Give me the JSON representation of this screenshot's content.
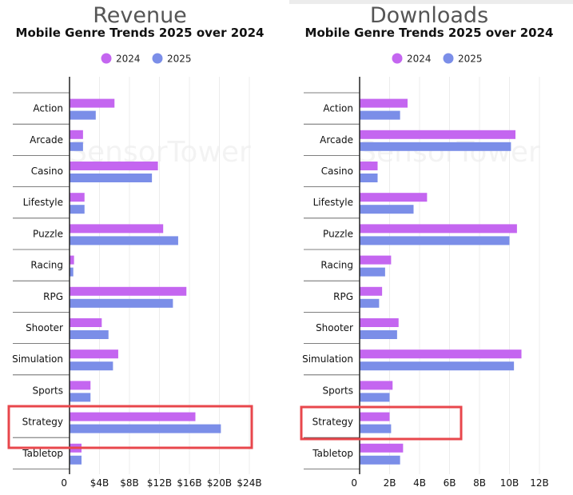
{
  "colors": {
    "y2024": "#c466f0",
    "y2025": "#7b8ee8",
    "highlight": "#e8474c",
    "grid": "#ececec",
    "axis": "#222222"
  },
  "watermark": "SensorTower",
  "chart_data": [
    {
      "type": "bar",
      "orientation": "horizontal",
      "title": "Revenue",
      "subtitle": "Mobile Genre Trends 2025 over 2024",
      "categories": [
        "Action",
        "Arcade",
        "Casino",
        "Lifestyle",
        "Puzzle",
        "Racing",
        "RPG",
        "Shooter",
        "Simulation",
        "Sports",
        "Strategy",
        "Tabletop"
      ],
      "series": [
        {
          "name": "2024",
          "values": [
            6.0,
            1.8,
            11.8,
            2.0,
            12.5,
            0.6,
            15.6,
            4.3,
            6.5,
            2.8,
            16.8,
            1.6
          ]
        },
        {
          "name": "2025",
          "values": [
            3.5,
            1.8,
            11.0,
            2.0,
            14.5,
            0.5,
            13.8,
            5.2,
            5.8,
            2.8,
            20.2,
            1.6
          ]
        }
      ],
      "xticks": [
        "0",
        "$4B",
        "$8B",
        "$12B",
        "$16B",
        "$20B",
        "$24B"
      ],
      "xlim": [
        0,
        24
      ],
      "grid": true,
      "legend": "top-center",
      "highlight_category": "Strategy"
    },
    {
      "type": "bar",
      "orientation": "horizontal",
      "title": "Downloads",
      "subtitle": "Mobile Genre Trends 2025 over 2024",
      "categories": [
        "Action",
        "Arcade",
        "Casino",
        "Lifestyle",
        "Puzzle",
        "Racing",
        "RPG",
        "Shooter",
        "Simulation",
        "Sports",
        "Strategy",
        "Tabletop"
      ],
      "series": [
        {
          "name": "2024",
          "values": [
            3.2,
            10.4,
            1.2,
            4.5,
            10.5,
            2.1,
            1.5,
            2.6,
            10.8,
            2.2,
            2.0,
            2.9
          ]
        },
        {
          "name": "2025",
          "values": [
            2.7,
            10.1,
            1.2,
            3.6,
            10.0,
            1.7,
            1.3,
            2.5,
            10.3,
            2.0,
            2.1,
            2.7
          ]
        }
      ],
      "xticks": [
        "0",
        "2B",
        "4B",
        "6B",
        "8B",
        "10B",
        "12B"
      ],
      "xlim": [
        0,
        12
      ],
      "grid": true,
      "legend": "top-center",
      "highlight_category": "Strategy"
    }
  ]
}
